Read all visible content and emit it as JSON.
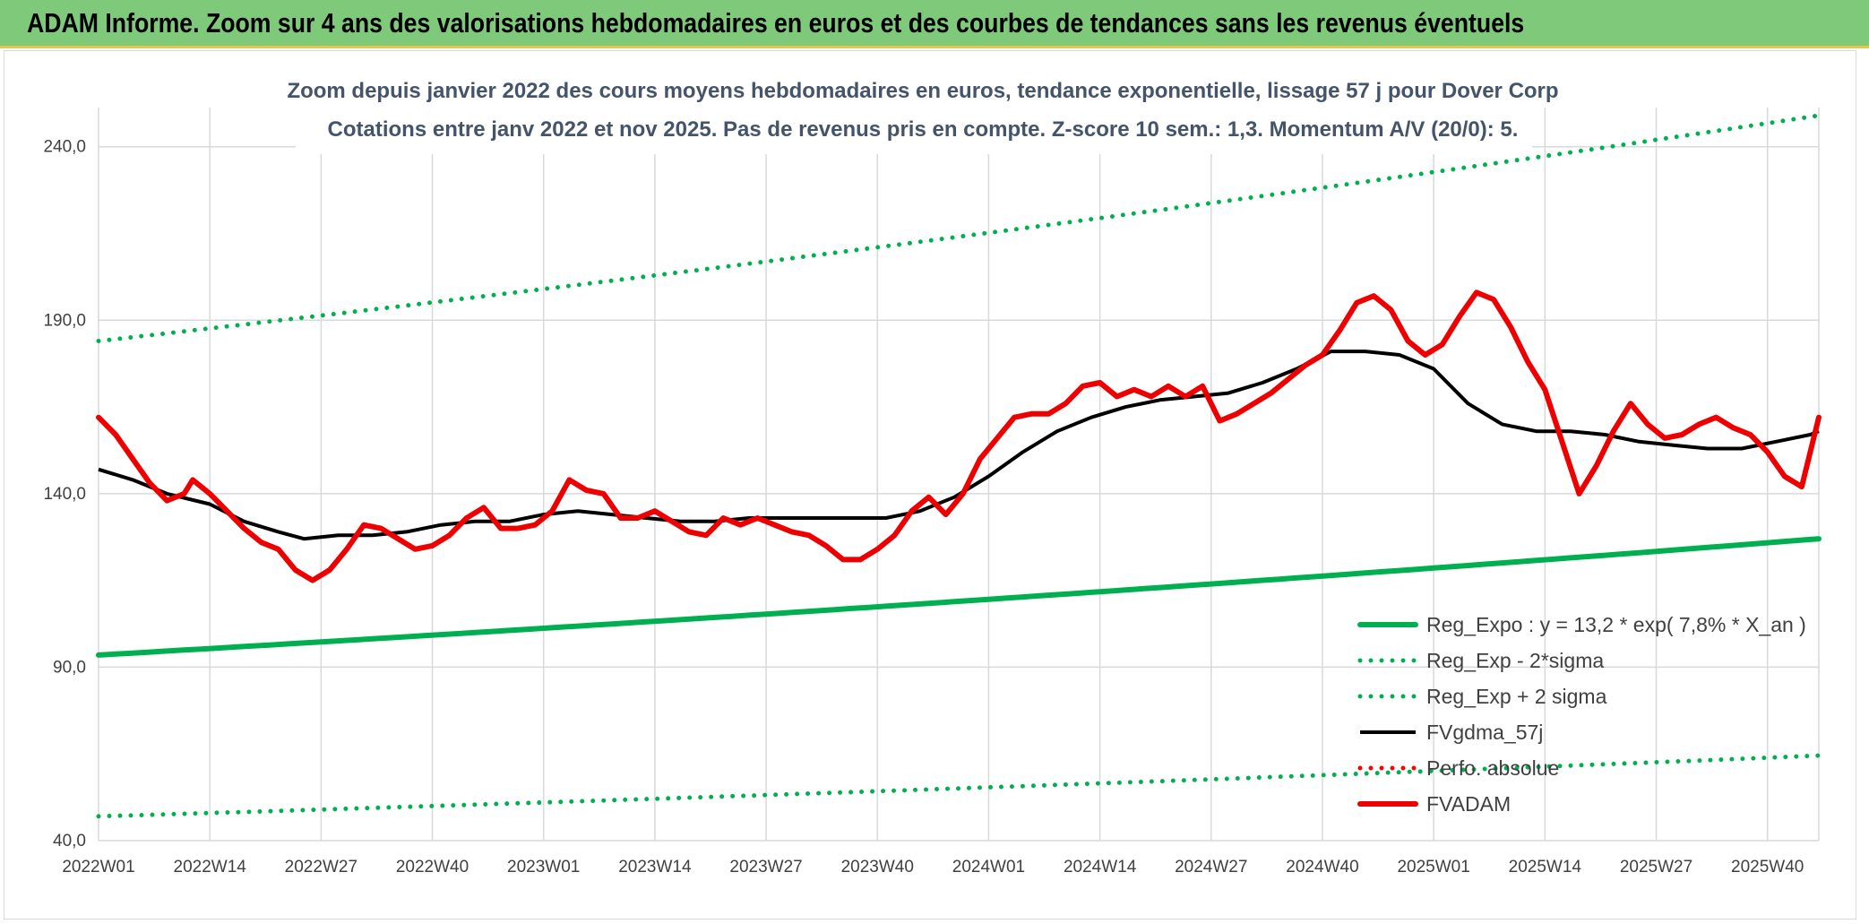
{
  "banner": {
    "title": "ADAM Informe. Zoom sur 4 ans des valorisations hebdomadaires en euros et des courbes de tendances sans les revenus éventuels"
  },
  "colors": {
    "banner_bg": "#7fc97a",
    "trend_green": "#00b050",
    "fvgdma_black": "#000000",
    "fvadam_red": "#ee0000",
    "perfo_red": "#ff0000",
    "grid": "#d9d9d9",
    "title_text": "#44546a",
    "axis_text": "#404040"
  },
  "chart_data": {
    "type": "line",
    "title": "Zoom depuis janvier 2022 des cours moyens hebdomadaires en euros, tendance exponentielle, lissage 57 j pour Dover Corp",
    "subtitle": "Cotations entre janv 2022 et nov 2025. Pas de revenus pris en compte. Z-score 10 sem.: 1,3. Momentum A/V (20/0): 5.",
    "xlabel": "",
    "ylabel": "",
    "ylim": [
      40,
      250
    ],
    "yticks": [
      40,
      90,
      140,
      190,
      240
    ],
    "ytick_labels": [
      "40,0",
      "90,0",
      "140,0",
      "190,0",
      "240,0"
    ],
    "grid": true,
    "legend_position": "bottom-right",
    "n_weeks": 202,
    "xtick_index": [
      0,
      13,
      26,
      39,
      52,
      65,
      78,
      91,
      104,
      117,
      130,
      143,
      156,
      169,
      182,
      195
    ],
    "xtick_labels": [
      "2022W01",
      "2022W14",
      "2022W27",
      "2022W40",
      "2023W01",
      "2023W14",
      "2023W27",
      "2023W40",
      "2024W01",
      "2024W14",
      "2024W27",
      "2024W40",
      "2025W01",
      "2025W14",
      "2025W27",
      "2025W40"
    ],
    "series": [
      {
        "name": "Reg_Expo : y = 13,2 * exp( 7,8% *  X_an )",
        "style": "solid-thick",
        "color": "#00b050",
        "start": 93.5,
        "end": 127
      },
      {
        "name": "Reg_Exp - 2*sigma",
        "style": "dotted",
        "color": "#00b050",
        "start": 47,
        "end": 64.5
      },
      {
        "name": "Reg_Exp + 2 sigma",
        "style": "dotted",
        "color": "#00b050",
        "start": 184,
        "end": 249
      },
      {
        "name": "FVgdma_57j",
        "style": "solid",
        "color": "#000000",
        "x": [
          0,
          4,
          8,
          13,
          17,
          21,
          24,
          28,
          32,
          36,
          40,
          44,
          48,
          52,
          56,
          60,
          64,
          68,
          72,
          76,
          80,
          84,
          88,
          92,
          96,
          100,
          104,
          108,
          112,
          116,
          120,
          124,
          128,
          132,
          136,
          140,
          144,
          148,
          152,
          156,
          160,
          164,
          168,
          172,
          176,
          180,
          184,
          188,
          192,
          196,
          200,
          201
        ],
        "y": [
          147,
          144,
          140,
          137,
          132,
          129,
          127,
          128,
          128,
          129,
          131,
          132,
          132,
          134,
          135,
          134,
          133,
          132,
          132,
          133,
          133,
          133,
          133,
          133,
          135,
          139,
          145,
          152,
          158,
          162,
          165,
          167,
          168,
          169,
          172,
          176,
          181,
          181,
          180,
          176,
          166,
          160,
          158,
          158,
          157,
          155,
          154,
          153,
          153,
          155,
          157,
          158
        ]
      },
      {
        "name": "Perfo. absolue",
        "style": "dotted",
        "color": "#ff0000",
        "legend_only": true
      },
      {
        "name": "FVADAM",
        "style": "solid-thick",
        "color": "#ee0000",
        "x": [
          0,
          2,
          4,
          6,
          8,
          10,
          11,
          13,
          15,
          17,
          19,
          21,
          23,
          25,
          27,
          29,
          31,
          33,
          35,
          37,
          39,
          41,
          43,
          45,
          47,
          49,
          51,
          53,
          55,
          57,
          59,
          61,
          63,
          65,
          67,
          69,
          71,
          73,
          75,
          77,
          79,
          81,
          83,
          85,
          87,
          89,
          91,
          93,
          95,
          97,
          99,
          101,
          103,
          105,
          107,
          109,
          111,
          113,
          115,
          117,
          119,
          121,
          123,
          125,
          127,
          129,
          131,
          133,
          135,
          137,
          139,
          141,
          143,
          145,
          147,
          149,
          151,
          153,
          155,
          157,
          159,
          161,
          163,
          165,
          167,
          169,
          171,
          173,
          175,
          177,
          179,
          181,
          183,
          185,
          187,
          189,
          191,
          193,
          195,
          197,
          199,
          201
        ],
        "y": [
          162,
          157,
          150,
          143,
          138,
          140,
          144,
          140,
          135,
          130,
          126,
          124,
          118,
          115,
          118,
          124,
          131,
          130,
          127,
          124,
          125,
          128,
          133,
          136,
          130,
          130,
          131,
          135,
          144,
          141,
          140,
          133,
          133,
          135,
          132,
          129,
          128,
          133,
          131,
          133,
          131,
          129,
          128,
          125,
          121,
          121,
          124,
          128,
          135,
          139,
          134,
          140,
          150,
          156,
          162,
          163,
          163,
          166,
          171,
          172,
          168,
          170,
          168,
          171,
          168,
          171,
          161,
          163,
          166,
          169,
          173,
          177,
          180,
          187,
          195,
          197,
          193,
          184,
          180,
          183,
          191,
          198,
          196,
          188,
          178,
          170,
          155,
          140,
          148,
          158,
          166,
          160,
          156,
          157,
          160,
          162,
          159,
          157,
          152,
          145,
          142,
          162
        ]
      }
    ]
  }
}
